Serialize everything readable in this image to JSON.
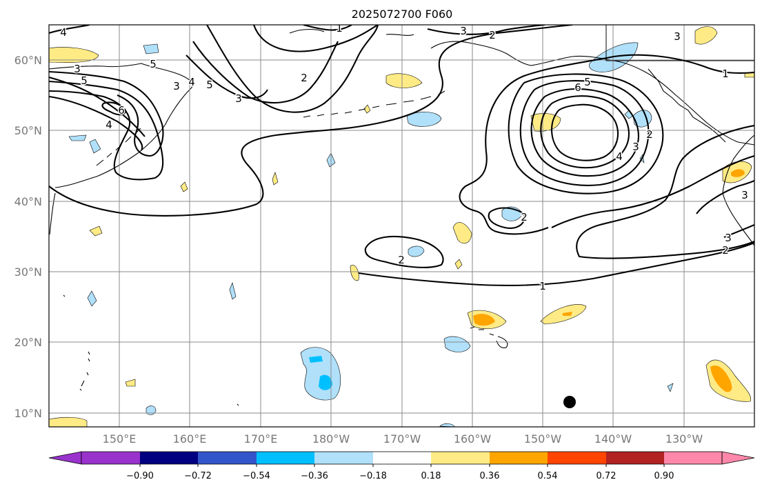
{
  "title": "2025072700 F060",
  "lat_labels": [
    "60°N",
    "50°N",
    "40°N",
    "30°N",
    "20°N",
    "10°N"
  ],
  "lon_labels": [
    "150°E",
    "160°E",
    "170°E",
    "180°W",
    "170°W",
    "160°W",
    "150°W",
    "140°W",
    "130°W"
  ],
  "colorbar": {
    "ticks": [
      "−0.90",
      "−0.72",
      "−0.54",
      "−0.36",
      "−0.18",
      "0.18",
      "0.36",
      "0.54",
      "0.72",
      "0.90"
    ],
    "colors": [
      "#9933cc",
      "#000080",
      "#3355cc",
      "#00bfff",
      "#b0e0fa",
      "#ffffff",
      "#ffeb85",
      "#ffa500",
      "#ff4500",
      "#b22222",
      "#ff88aa"
    ]
  },
  "contour_labels": {
    "c1": "1",
    "c2": "2",
    "c3": "3",
    "c4": "4",
    "c5": "5",
    "c6": "6"
  },
  "marker": {
    "label": "storm-position"
  }
}
